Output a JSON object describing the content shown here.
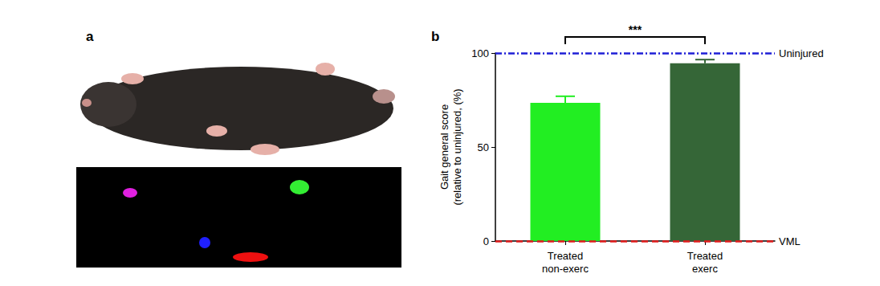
{
  "panel_labels": [
    "a",
    "b"
  ],
  "chart_data": {
    "type": "bar",
    "categories": [
      "Treated\nnon-exerc",
      "Treated\nexerc"
    ],
    "values": [
      73.5,
      94.5
    ],
    "errors": [
      3.5,
      2
    ],
    "colors": [
      "#22ee22",
      "#356637"
    ],
    "ylim": [
      0,
      100
    ],
    "yticks": [
      0,
      50,
      100
    ],
    "y_label": "Gait general score\n(relative to uninjured, (%)",
    "grid": false,
    "reference_lines": [
      {
        "value": 100,
        "label": "Uninjured",
        "color": "#1f1fd6",
        "line_style": "dashdot"
      },
      {
        "value": 0,
        "label": "VML",
        "color": "#e01b1b",
        "line_style": "dashed"
      }
    ],
    "annotations": [
      {
        "text": "***",
        "between": [
          "Treated\nnon-exerc",
          "Treated\nexerc"
        ]
      }
    ]
  }
}
